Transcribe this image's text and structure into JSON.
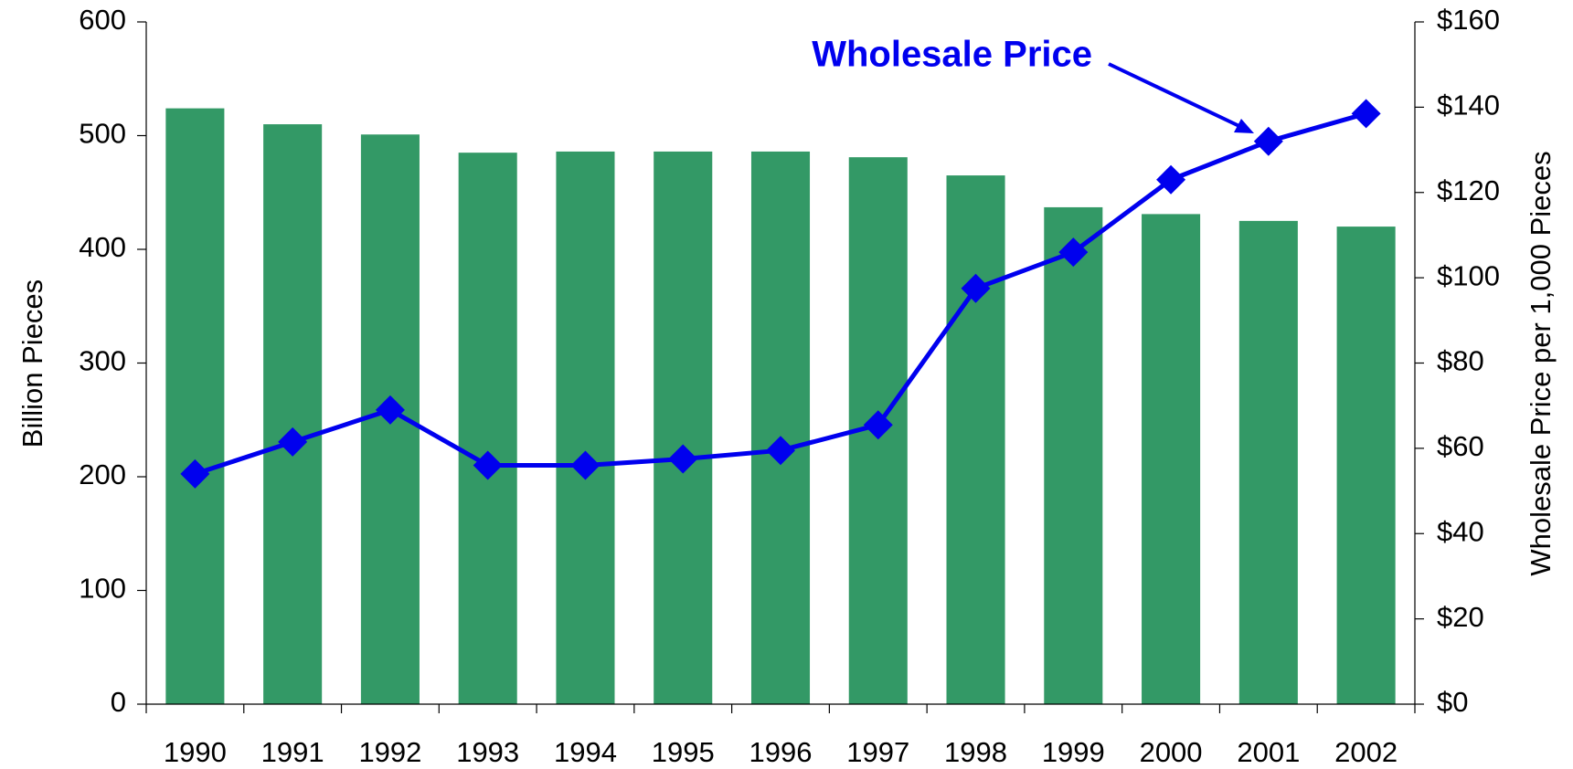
{
  "chart_data": {
    "type": "bar",
    "categories": [
      "1990",
      "1991",
      "1992",
      "1993",
      "1994",
      "1995",
      "1996",
      "1997",
      "1998",
      "1999",
      "2000",
      "2001",
      "2002"
    ],
    "series": [
      {
        "type": "bar",
        "color": "#339966",
        "values": [
          524,
          510,
          501,
          485,
          486,
          486,
          486,
          481,
          465,
          437,
          431,
          425,
          420
        ]
      },
      {
        "type": "line",
        "name": "Wholesale Price",
        "axis": "y2",
        "color": "#0000ee",
        "values": [
          54,
          61.5,
          69,
          56,
          56,
          57.5,
          59.5,
          65.5,
          97.5,
          106,
          123,
          132,
          138.5
        ]
      }
    ],
    "y_label": "Billion Pieces",
    "y2_label": "Wholesale Price per 1,000 Pieces",
    "ylim": [
      0,
      600
    ],
    "yticks": [
      0,
      100,
      200,
      300,
      400,
      500,
      600
    ],
    "y2lim": [
      0,
      160
    ],
    "y2ticks": [
      {
        "value": 0,
        "label": "$0"
      },
      {
        "value": 20,
        "label": "$20"
      },
      {
        "value": 40,
        "label": "$40"
      },
      {
        "value": 60,
        "label": "$60"
      },
      {
        "value": 80,
        "label": "$80"
      },
      {
        "value": 100,
        "label": "$100"
      },
      {
        "value": 120,
        "label": "$120"
      },
      {
        "value": 140,
        "label": "$140"
      },
      {
        "value": 160,
        "label": "$160"
      }
    ]
  }
}
